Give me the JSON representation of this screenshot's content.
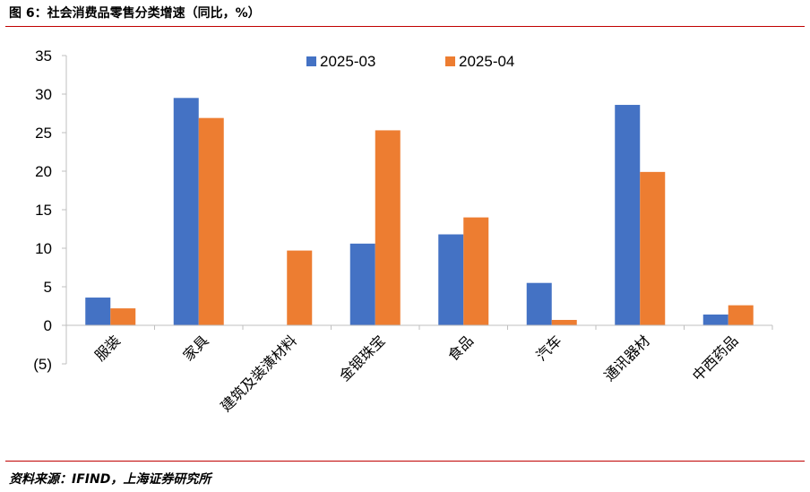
{
  "figure": {
    "title": "图 6：社会消费品零售分类增速（同比，%）",
    "source": "资料来源：IFIND，上海证券研究所"
  },
  "colors": {
    "series1": "#4472c4",
    "series2": "#ed7d31",
    "negative_tick": "#ff0000",
    "rule": "#c00000"
  },
  "chart_data": {
    "type": "bar",
    "title": "",
    "xlabel": "",
    "ylabel": "",
    "categories": [
      "服装",
      "家具",
      "建筑及装潢材料",
      "金银珠宝",
      "食品",
      "汽车",
      "通讯器材",
      "中西药品"
    ],
    "series": [
      {
        "name": "2025-03",
        "values": [
          3.6,
          29.5,
          0.0,
          10.6,
          11.8,
          5.5,
          28.6,
          1.4
        ]
      },
      {
        "name": "2025-04",
        "values": [
          2.2,
          26.9,
          9.7,
          25.3,
          14.0,
          0.7,
          19.9,
          2.6
        ]
      }
    ],
    "ylim": [
      -5,
      35
    ],
    "yticks": [
      {
        "value": 35,
        "label": "35"
      },
      {
        "value": 30,
        "label": "30"
      },
      {
        "value": 25,
        "label": "25"
      },
      {
        "value": 20,
        "label": "20"
      },
      {
        "value": 15,
        "label": "15"
      },
      {
        "value": 10,
        "label": "10"
      },
      {
        "value": 5,
        "label": "5"
      },
      {
        "value": 0,
        "label": "0"
      },
      {
        "value": -5,
        "label": "(5)"
      }
    ],
    "grid": false,
    "legend_position": "top-center"
  }
}
